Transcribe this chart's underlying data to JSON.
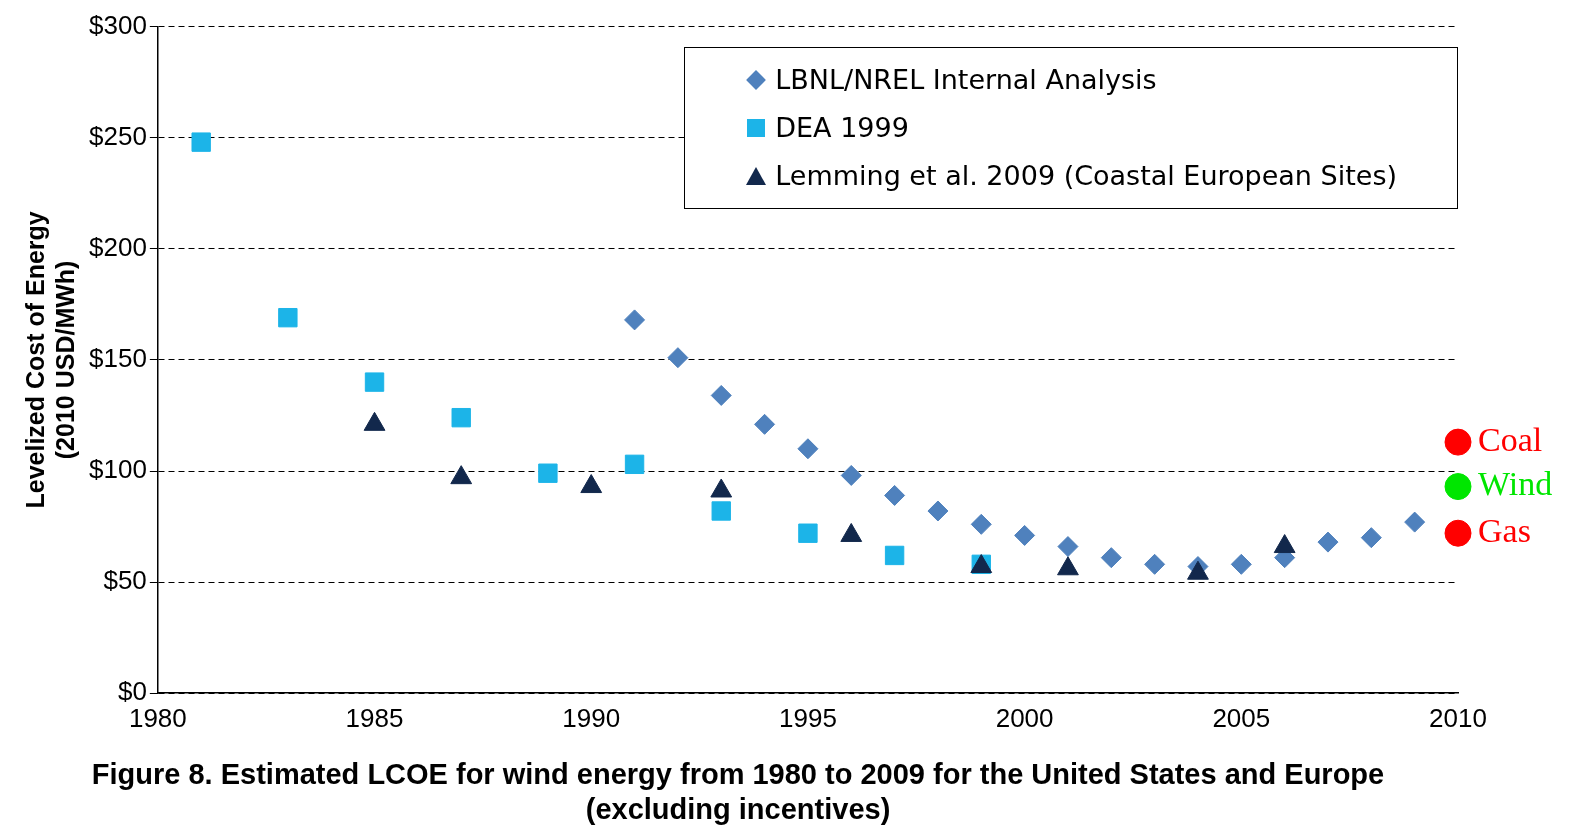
{
  "chart_data": {
    "type": "scatter",
    "title": "Figure 8. Estimated LCOE for wind energy from 1980 to 2009 for the United States and Europe\n(excluding incentives)",
    "ylabel": "Levelized Cost of Energy\n(2010 USD/MWh)",
    "xlim": [
      1980,
      2010
    ],
    "xticks": [
      1980,
      1985,
      1990,
      1995,
      2000,
      2005,
      2010
    ],
    "ylim": [
      0,
      300
    ],
    "yticks": [
      {
        "value": 0,
        "label": "$0"
      },
      {
        "value": 50,
        "label": "$50"
      },
      {
        "value": 100,
        "label": "$100"
      },
      {
        "value": 150,
        "label": "$150"
      },
      {
        "value": 200,
        "label": "$200"
      },
      {
        "value": 250,
        "label": "$250"
      },
      {
        "value": 300,
        "label": "$300"
      }
    ],
    "grid": "y",
    "legend": "top right",
    "series": [
      {
        "name": "LBNL/NREL Internal Analysis",
        "color": "#4f81bd",
        "marker": "diamond",
        "x": [
          1991,
          1992,
          1993,
          1994,
          1995,
          1996,
          1997,
          1998,
          1999,
          2000,
          2001,
          2002,
          2003,
          2004,
          2005,
          2006,
          2007,
          2008,
          2009
        ],
        "values": [
          168,
          151,
          134,
          121,
          110,
          98,
          89,
          82,
          76,
          71,
          66,
          61,
          58,
          57,
          58,
          61,
          68,
          70,
          77
        ]
      },
      {
        "name": "DEA 1999",
        "color": "#1cb4e8",
        "marker": "square",
        "x": [
          1981,
          1983,
          1985,
          1987,
          1989,
          1991,
          1993,
          1995,
          1997,
          1999
        ],
        "values": [
          248,
          169,
          140,
          124,
          99,
          103,
          82,
          72,
          62,
          58
        ]
      },
      {
        "name": "Lemming et al. 2009 (Coastal European Sites)",
        "color": "#12284c",
        "marker": "triangle",
        "x": [
          1985,
          1987,
          1990,
          1993,
          1996,
          1999,
          2001,
          2004,
          2006
        ],
        "values": [
          121,
          97,
          93,
          91,
          71,
          57,
          56,
          54,
          66
        ]
      },
      {
        "name": "Coal",
        "color": "#ff0000",
        "marker": "circle",
        "x": [
          2010
        ],
        "values": [
          113
        ]
      },
      {
        "name": "Wind",
        "color": "#00e600",
        "marker": "circle",
        "x": [
          2010
        ],
        "values": [
          93
        ]
      },
      {
        "name": "Gas",
        "color": "#ff0000",
        "marker": "circle",
        "x": [
          2010
        ],
        "values": [
          72
        ]
      }
    ]
  }
}
